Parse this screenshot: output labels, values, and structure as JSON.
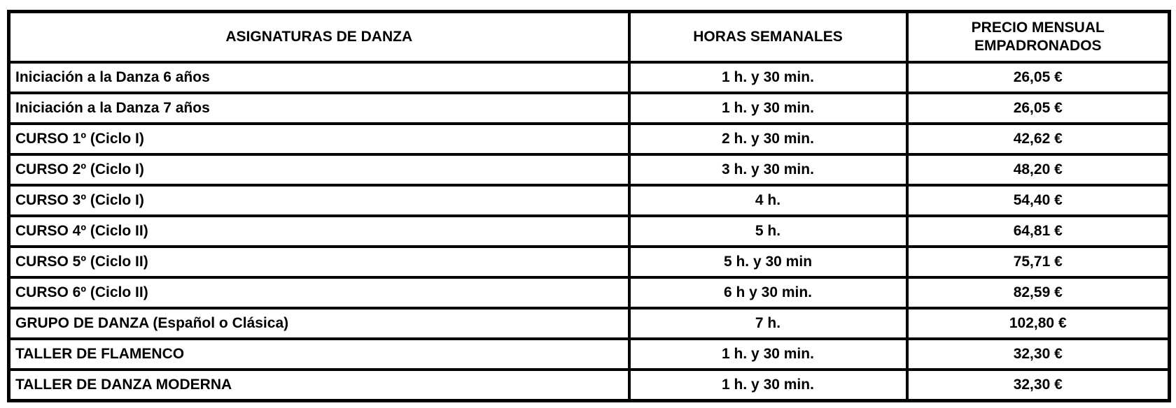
{
  "colors": {
    "background": "#ffffff",
    "border": "#000000",
    "text": "#000000"
  },
  "table": {
    "columns": [
      {
        "label": "ASIGNATURAS DE DANZA"
      },
      {
        "label": "HORAS SEMANALES"
      },
      {
        "label": "PRECIO MENSUAL\nEMPADRONADOS"
      }
    ],
    "rows": [
      {
        "subject": "Iniciación a la Danza 6 años",
        "hours": "1 h. y 30 min.",
        "price": "26,05 €"
      },
      {
        "subject": "Iniciación a la Danza 7 años",
        "hours": "1 h. y 30 min.",
        "price": "26,05 €"
      },
      {
        "subject": "CURSO 1º (Ciclo I)",
        "hours": "2 h. y 30 min.",
        "price": "42,62 €"
      },
      {
        "subject": "CURSO 2º (Ciclo I)",
        "hours": "3 h. y 30 min.",
        "price": "48,20 €"
      },
      {
        "subject": "CURSO 3º (Ciclo I)",
        "hours": "4 h.",
        "price": "54,40 €"
      },
      {
        "subject": "CURSO 4º (Ciclo II)",
        "hours": "5 h.",
        "price": "64,81 €"
      },
      {
        "subject": "CURSO 5º (Ciclo II)",
        "hours": "5 h. y 30 min",
        "price": "75,71 €"
      },
      {
        "subject": "CURSO 6º (Ciclo II)",
        "hours": "6 h y 30 min.",
        "price": "82,59 €"
      },
      {
        "subject": "GRUPO DE DANZA (Español o Clásica)",
        "hours": "7 h.",
        "price": "102,80 €"
      },
      {
        "subject": "TALLER DE FLAMENCO",
        "hours": "1 h. y 30 min.",
        "price": "32,30 €"
      },
      {
        "subject": "TALLER DE DANZA MODERNA",
        "hours": "1 h. y 30 min.",
        "price": "32,30 €"
      }
    ]
  }
}
